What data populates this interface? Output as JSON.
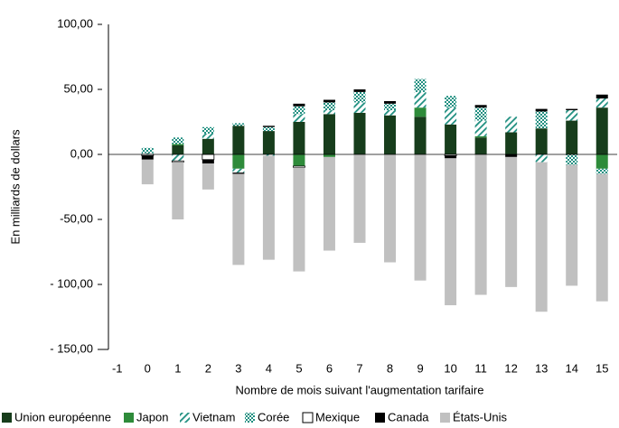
{
  "chart_data": {
    "type": "stacked_bar",
    "y_label": "En milliards de dollars",
    "x_label": "Nombre de mois suivant l'augmentation tarifaire",
    "categories": [
      "-1",
      "0",
      "1",
      "2",
      "3",
      "4",
      "5",
      "6",
      "7",
      "8",
      "9",
      "10",
      "11",
      "12",
      "13",
      "14",
      "15"
    ],
    "ylim": [
      -150,
      100
    ],
    "yticks": [
      {
        "value": -150,
        "label": "- 150,00"
      },
      {
        "value": -100,
        "label": "- 100,00"
      },
      {
        "value": -50,
        "label": "-50,00"
      },
      {
        "value": 0,
        "label": "0,00"
      },
      {
        "value": 50,
        "label": "50,00"
      },
      {
        "value": 100,
        "label": "100,00"
      }
    ],
    "series": [
      {
        "name": "Union européenne",
        "color": "#173d1c",
        "fill_style": "solid",
        "values": [
          0,
          0,
          7,
          12,
          22,
          18,
          25,
          31,
          32,
          30,
          29,
          23,
          13,
          17,
          20,
          26,
          36
        ]
      },
      {
        "name": "Japon",
        "color": "#2e8b3a",
        "fill_style": "solid",
        "values": [
          0,
          0,
          1,
          0,
          -11,
          0,
          -9,
          -2,
          0,
          0,
          7,
          0,
          1,
          0,
          0,
          0,
          -11
        ]
      },
      {
        "name": "Vietnam",
        "color": "#1f8f80",
        "fill_style": "diagonal",
        "values": [
          0,
          1,
          -5,
          4,
          -3,
          -1,
          6,
          3,
          8,
          4,
          12,
          13,
          12,
          12,
          -6,
          8,
          7
        ]
      },
      {
        "name": "Corée",
        "color": "#1f8f80",
        "fill_style": "checker",
        "values": [
          0,
          4,
          5,
          5,
          2,
          3,
          6,
          6,
          8,
          5,
          10,
          9,
          10,
          0,
          13,
          -8,
          -4
        ]
      },
      {
        "name": "Mexique",
        "color": "#ffffff",
        "fill_style": "solid",
        "values": [
          0,
          -1,
          -1,
          -4,
          0,
          0,
          -1,
          0,
          0,
          0,
          0,
          -1,
          0,
          0,
          0,
          0,
          0
        ]
      },
      {
        "name": "Canada",
        "color": "#000000",
        "fill_style": "solid",
        "values": [
          0,
          -3,
          0,
          -3,
          -1,
          1,
          2,
          2,
          2,
          2,
          0,
          -2,
          2,
          -2,
          2,
          1,
          3
        ]
      },
      {
        "name": "États-Unis",
        "color": "#c0c0c0",
        "fill_style": "solid",
        "values": [
          0,
          -19,
          -44,
          -20,
          -70,
          -80,
          -80,
          -72,
          -68,
          -83,
          -97,
          -113,
          -108,
          -100,
          -115,
          -93,
          -98
        ]
      }
    ]
  }
}
